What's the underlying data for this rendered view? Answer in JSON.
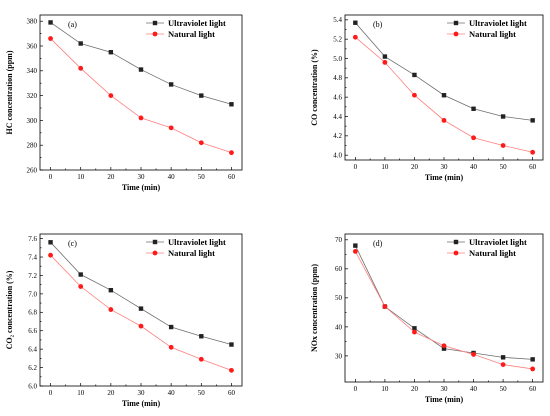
{
  "colors": {
    "uv": "#222222",
    "nat": "#ff1a1a",
    "uv_line": "#6e6e6e",
    "nat_line": "#ff7f7f"
  },
  "chart_data": [
    {
      "type": "line",
      "panel": "(a)",
      "xlabel": "Time (min)",
      "ylabel": "HC concentration (ppm)",
      "x": [
        0,
        10,
        20,
        30,
        40,
        50,
        60
      ],
      "xticks": [
        0,
        10,
        20,
        30,
        40,
        50,
        60
      ],
      "xlim": [
        -3.5,
        63.5
      ],
      "ylim": [
        260,
        385
      ],
      "yticks": [
        260,
        280,
        300,
        320,
        340,
        360,
        380
      ],
      "ytick_labels": [
        "260",
        "280",
        "300",
        "320",
        "340",
        "360",
        "380"
      ],
      "series": [
        {
          "name": "Ultraviolet light",
          "values": [
            379,
            362,
            355,
            341,
            329,
            320,
            313
          ]
        },
        {
          "name": "Natural light",
          "values": [
            366,
            342,
            320,
            302,
            294,
            282,
            274
          ]
        }
      ]
    },
    {
      "type": "line",
      "panel": "(b)",
      "xlabel": "Time (min)",
      "ylabel": "CO concentration (%)",
      "x": [
        0,
        10,
        20,
        30,
        40,
        50,
        60
      ],
      "xticks": [
        0,
        10,
        20,
        30,
        40,
        50,
        60
      ],
      "xlim": [
        -3.5,
        63.5
      ],
      "ylim": [
        3.95,
        5.45
      ],
      "yticks": [
        4.0,
        4.2,
        4.4,
        4.6,
        4.8,
        5.0,
        5.2,
        5.4
      ],
      "ytick_labels": [
        "4.0",
        "4.2",
        "4.4",
        "4.6",
        "4.8",
        "5.0",
        "5.2",
        "5.4"
      ],
      "series": [
        {
          "name": "Ultraviolet light",
          "values": [
            5.37,
            5.02,
            4.83,
            4.62,
            4.48,
            4.4,
            4.36
          ]
        },
        {
          "name": "Natural light",
          "values": [
            5.22,
            4.96,
            4.62,
            4.36,
            4.18,
            4.1,
            4.03
          ]
        }
      ]
    },
    {
      "type": "line",
      "panel": "(c)",
      "xlabel": "Time (min)",
      "ylabel": "CO₂ concentration (%)",
      "x": [
        0,
        10,
        20,
        30,
        40,
        50,
        60
      ],
      "xticks": [
        0,
        10,
        20,
        30,
        40,
        50,
        60
      ],
      "xlim": [
        -3.5,
        63.5
      ],
      "ylim": [
        6.0,
        7.65
      ],
      "yticks": [
        6.0,
        6.2,
        6.4,
        6.6,
        6.8,
        7.0,
        7.2,
        7.4,
        7.6
      ],
      "ytick_labels": [
        "6.0",
        "6.2",
        "6.4",
        "6.6",
        "6.8",
        "7.0",
        "7.2",
        "7.4",
        "7.6"
      ],
      "series": [
        {
          "name": "Ultraviolet light",
          "values": [
            7.56,
            7.21,
            7.04,
            6.84,
            6.64,
            6.54,
            6.45
          ]
        },
        {
          "name": "Natural light",
          "values": [
            7.42,
            7.08,
            6.83,
            6.65,
            6.42,
            6.29,
            6.17
          ]
        }
      ]
    },
    {
      "type": "line",
      "panel": "(d)",
      "xlabel": "Time (min)",
      "ylabel": "NOx concentration (ppm)",
      "x": [
        0,
        10,
        20,
        30,
        40,
        50,
        60
      ],
      "xticks": [
        0,
        10,
        20,
        30,
        40,
        50,
        60
      ],
      "xlim": [
        -3.5,
        63.5
      ],
      "ylim": [
        21,
        72
      ],
      "yticks": [
        30,
        40,
        50,
        60,
        70
      ],
      "ytick_labels": [
        "30",
        "40",
        "50",
        "60",
        "70"
      ],
      "series": [
        {
          "name": "Ultraviolet light",
          "values": [
            68,
            47,
            39.5,
            32.5,
            31,
            29.5,
            28.8
          ]
        },
        {
          "name": "Natural light",
          "values": [
            66,
            47,
            38.2,
            33.5,
            30.5,
            27,
            25.5
          ]
        }
      ]
    }
  ]
}
